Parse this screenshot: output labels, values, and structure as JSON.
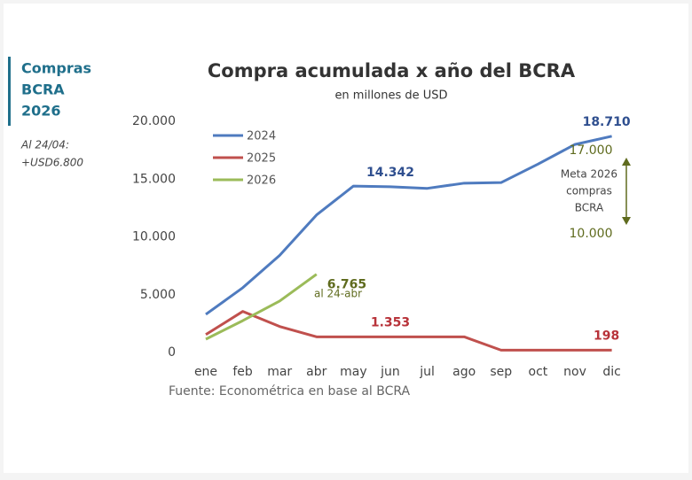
{
  "sidebar": {
    "title_lines": [
      "Compras",
      "BCRA",
      "2026"
    ],
    "note_lines": [
      "Al 24/04:",
      "+USD6.800"
    ]
  },
  "chart_data": {
    "type": "line",
    "title": "Compra acumulada x año del BCRA",
    "subtitle": "en millones de USD",
    "source": "Fuente: Econométrica en base al BCRA",
    "categories": [
      "ene",
      "feb",
      "mar",
      "abr",
      "may",
      "jun",
      "jul",
      "ago",
      "sep",
      "oct",
      "nov",
      "dic"
    ],
    "ylim": [
      0,
      20000
    ],
    "yticks": [
      0,
      {
        "value": 5000,
        "label": "5.000"
      },
      {
        "value": 10000,
        "label": "10.000"
      },
      {
        "value": 15000,
        "label": "15.000"
      },
      {
        "value": 20000,
        "label": "20.000"
      }
    ],
    "legend": "top-left",
    "series": [
      {
        "name": "2024",
        "color": "#4f7bbf",
        "label_color": "#2f4f8f",
        "values": [
          3300,
          5600,
          8400,
          11900,
          14400,
          14342,
          14200,
          14650,
          14700,
          16300,
          18000,
          18710
        ],
        "value_labels": [
          null,
          null,
          null,
          null,
          null,
          "14.342",
          null,
          null,
          null,
          null,
          null,
          "18.710"
        ]
      },
      {
        "name": "2025",
        "color": "#c0504d",
        "label_color": "#b8333a",
        "values": [
          1550,
          3550,
          2250,
          1353,
          1353,
          1353,
          1353,
          1353,
          200,
          198,
          198,
          198
        ],
        "value_labels": [
          null,
          null,
          null,
          null,
          null,
          "1.353",
          null,
          null,
          null,
          null,
          null,
          "198"
        ]
      },
      {
        "name": "2026",
        "color": "#9bbb59",
        "label_color": "#5f6b1e",
        "values": [
          1150,
          2750,
          4450,
          6765,
          null,
          null,
          null,
          null,
          null,
          null,
          null,
          null
        ],
        "value_labels": [
          null,
          null,
          null,
          "6.765",
          null,
          null,
          null,
          null,
          null,
          null,
          null,
          null
        ]
      }
    ],
    "annotations": [
      "al 24-abr",
      "17.000",
      "Meta 2026",
      "compras",
      "BCRA",
      "10.000"
    ]
  }
}
